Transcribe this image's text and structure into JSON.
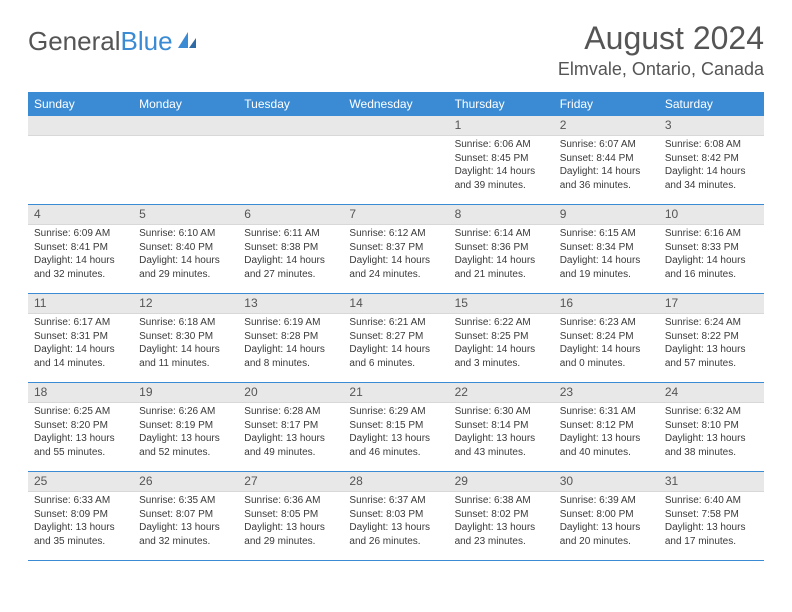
{
  "logo": {
    "part1": "General",
    "part2": "Blue"
  },
  "title": "August 2024",
  "location": "Elmvale, Ontario, Canada",
  "colors": {
    "accent": "#3b8bd4",
    "header_text": "#ffffff",
    "daynum_bg": "#e8e8e8",
    "text": "#3a3a3a"
  },
  "weekdays": [
    "Sunday",
    "Monday",
    "Tuesday",
    "Wednesday",
    "Thursday",
    "Friday",
    "Saturday"
  ],
  "weeks": [
    [
      null,
      null,
      null,
      null,
      {
        "n": "1",
        "rise": "Sunrise: 6:06 AM",
        "set": "Sunset: 8:45 PM",
        "d1": "Daylight: 14 hours",
        "d2": "and 39 minutes."
      },
      {
        "n": "2",
        "rise": "Sunrise: 6:07 AM",
        "set": "Sunset: 8:44 PM",
        "d1": "Daylight: 14 hours",
        "d2": "and 36 minutes."
      },
      {
        "n": "3",
        "rise": "Sunrise: 6:08 AM",
        "set": "Sunset: 8:42 PM",
        "d1": "Daylight: 14 hours",
        "d2": "and 34 minutes."
      }
    ],
    [
      {
        "n": "4",
        "rise": "Sunrise: 6:09 AM",
        "set": "Sunset: 8:41 PM",
        "d1": "Daylight: 14 hours",
        "d2": "and 32 minutes."
      },
      {
        "n": "5",
        "rise": "Sunrise: 6:10 AM",
        "set": "Sunset: 8:40 PM",
        "d1": "Daylight: 14 hours",
        "d2": "and 29 minutes."
      },
      {
        "n": "6",
        "rise": "Sunrise: 6:11 AM",
        "set": "Sunset: 8:38 PM",
        "d1": "Daylight: 14 hours",
        "d2": "and 27 minutes."
      },
      {
        "n": "7",
        "rise": "Sunrise: 6:12 AM",
        "set": "Sunset: 8:37 PM",
        "d1": "Daylight: 14 hours",
        "d2": "and 24 minutes."
      },
      {
        "n": "8",
        "rise": "Sunrise: 6:14 AM",
        "set": "Sunset: 8:36 PM",
        "d1": "Daylight: 14 hours",
        "d2": "and 21 minutes."
      },
      {
        "n": "9",
        "rise": "Sunrise: 6:15 AM",
        "set": "Sunset: 8:34 PM",
        "d1": "Daylight: 14 hours",
        "d2": "and 19 minutes."
      },
      {
        "n": "10",
        "rise": "Sunrise: 6:16 AM",
        "set": "Sunset: 8:33 PM",
        "d1": "Daylight: 14 hours",
        "d2": "and 16 minutes."
      }
    ],
    [
      {
        "n": "11",
        "rise": "Sunrise: 6:17 AM",
        "set": "Sunset: 8:31 PM",
        "d1": "Daylight: 14 hours",
        "d2": "and 14 minutes."
      },
      {
        "n": "12",
        "rise": "Sunrise: 6:18 AM",
        "set": "Sunset: 8:30 PM",
        "d1": "Daylight: 14 hours",
        "d2": "and 11 minutes."
      },
      {
        "n": "13",
        "rise": "Sunrise: 6:19 AM",
        "set": "Sunset: 8:28 PM",
        "d1": "Daylight: 14 hours",
        "d2": "and 8 minutes."
      },
      {
        "n": "14",
        "rise": "Sunrise: 6:21 AM",
        "set": "Sunset: 8:27 PM",
        "d1": "Daylight: 14 hours",
        "d2": "and 6 minutes."
      },
      {
        "n": "15",
        "rise": "Sunrise: 6:22 AM",
        "set": "Sunset: 8:25 PM",
        "d1": "Daylight: 14 hours",
        "d2": "and 3 minutes."
      },
      {
        "n": "16",
        "rise": "Sunrise: 6:23 AM",
        "set": "Sunset: 8:24 PM",
        "d1": "Daylight: 14 hours",
        "d2": "and 0 minutes."
      },
      {
        "n": "17",
        "rise": "Sunrise: 6:24 AM",
        "set": "Sunset: 8:22 PM",
        "d1": "Daylight: 13 hours",
        "d2": "and 57 minutes."
      }
    ],
    [
      {
        "n": "18",
        "rise": "Sunrise: 6:25 AM",
        "set": "Sunset: 8:20 PM",
        "d1": "Daylight: 13 hours",
        "d2": "and 55 minutes."
      },
      {
        "n": "19",
        "rise": "Sunrise: 6:26 AM",
        "set": "Sunset: 8:19 PM",
        "d1": "Daylight: 13 hours",
        "d2": "and 52 minutes."
      },
      {
        "n": "20",
        "rise": "Sunrise: 6:28 AM",
        "set": "Sunset: 8:17 PM",
        "d1": "Daylight: 13 hours",
        "d2": "and 49 minutes."
      },
      {
        "n": "21",
        "rise": "Sunrise: 6:29 AM",
        "set": "Sunset: 8:15 PM",
        "d1": "Daylight: 13 hours",
        "d2": "and 46 minutes."
      },
      {
        "n": "22",
        "rise": "Sunrise: 6:30 AM",
        "set": "Sunset: 8:14 PM",
        "d1": "Daylight: 13 hours",
        "d2": "and 43 minutes."
      },
      {
        "n": "23",
        "rise": "Sunrise: 6:31 AM",
        "set": "Sunset: 8:12 PM",
        "d1": "Daylight: 13 hours",
        "d2": "and 40 minutes."
      },
      {
        "n": "24",
        "rise": "Sunrise: 6:32 AM",
        "set": "Sunset: 8:10 PM",
        "d1": "Daylight: 13 hours",
        "d2": "and 38 minutes."
      }
    ],
    [
      {
        "n": "25",
        "rise": "Sunrise: 6:33 AM",
        "set": "Sunset: 8:09 PM",
        "d1": "Daylight: 13 hours",
        "d2": "and 35 minutes."
      },
      {
        "n": "26",
        "rise": "Sunrise: 6:35 AM",
        "set": "Sunset: 8:07 PM",
        "d1": "Daylight: 13 hours",
        "d2": "and 32 minutes."
      },
      {
        "n": "27",
        "rise": "Sunrise: 6:36 AM",
        "set": "Sunset: 8:05 PM",
        "d1": "Daylight: 13 hours",
        "d2": "and 29 minutes."
      },
      {
        "n": "28",
        "rise": "Sunrise: 6:37 AM",
        "set": "Sunset: 8:03 PM",
        "d1": "Daylight: 13 hours",
        "d2": "and 26 minutes."
      },
      {
        "n": "29",
        "rise": "Sunrise: 6:38 AM",
        "set": "Sunset: 8:02 PM",
        "d1": "Daylight: 13 hours",
        "d2": "and 23 minutes."
      },
      {
        "n": "30",
        "rise": "Sunrise: 6:39 AM",
        "set": "Sunset: 8:00 PM",
        "d1": "Daylight: 13 hours",
        "d2": "and 20 minutes."
      },
      {
        "n": "31",
        "rise": "Sunrise: 6:40 AM",
        "set": "Sunset: 7:58 PM",
        "d1": "Daylight: 13 hours",
        "d2": "and 17 minutes."
      }
    ]
  ]
}
